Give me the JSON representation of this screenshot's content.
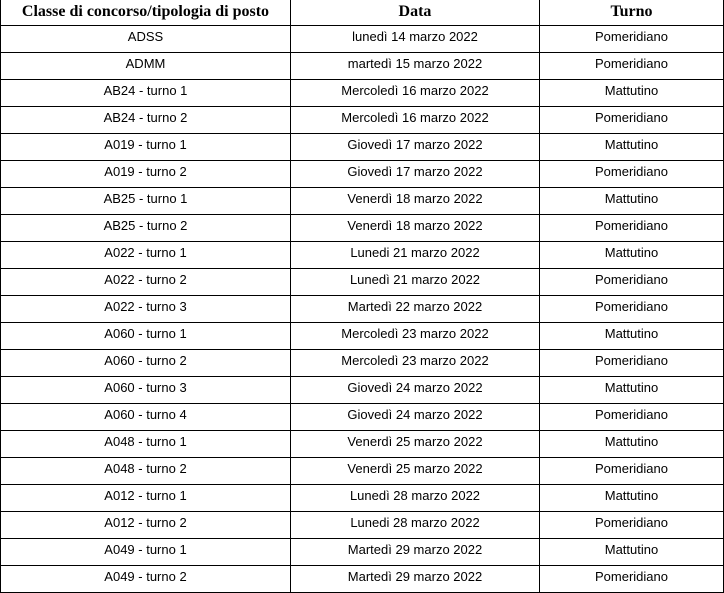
{
  "table": {
    "headers": [
      "Classe di concorso/tipologia di posto",
      "Data",
      "Turno"
    ],
    "rows": [
      [
        "ADSS",
        "lunedì 14 marzo 2022",
        "Pomeridiano"
      ],
      [
        "ADMM",
        "martedì 15 marzo 2022",
        "Pomeridiano"
      ],
      [
        "AB24 - turno 1",
        "Mercoledì 16 marzo 2022",
        "Mattutino"
      ],
      [
        "AB24 - turno 2",
        "Mercoledì 16 marzo 2022",
        "Pomeridiano"
      ],
      [
        "A019 - turno 1",
        "Giovedì 17 marzo 2022",
        "Mattutino"
      ],
      [
        "A019 - turno 2",
        "Giovedì 17 marzo 2022",
        "Pomeridiano"
      ],
      [
        "AB25 - turno 1",
        "Venerdì 18 marzo 2022",
        "Mattutino"
      ],
      [
        "AB25 - turno 2",
        "Venerdì 18 marzo 2022",
        "Pomeridiano"
      ],
      [
        "A022 - turno 1",
        "Lunedi 21 marzo 2022",
        "Mattutino"
      ],
      [
        "A022 - turno 2",
        "Lunedì 21 marzo 2022",
        "Pomeridiano"
      ],
      [
        "A022 - turno 3",
        "Martedì 22 marzo 2022",
        "Pomeridiano"
      ],
      [
        "A060 - turno 1",
        "Mercoledì 23 marzo 2022",
        "Mattutino"
      ],
      [
        "A060 - turno 2",
        "Mercoledì 23 marzo 2022",
        "Pomeridiano"
      ],
      [
        "A060 - turno 3",
        "Giovedì 24 marzo 2022",
        "Mattutino"
      ],
      [
        "A060 - turno 4",
        "Giovedì 24 marzo 2022",
        "Pomeridiano"
      ],
      [
        "A048 - turno 1",
        "Venerdì 25 marzo 2022",
        "Mattutino"
      ],
      [
        "A048 - turno 2",
        "Venerdì 25 marzo 2022",
        "Pomeridiano"
      ],
      [
        "A012 - turno 1",
        "Lunedì 28 marzo 2022",
        "Mattutino"
      ],
      [
        "A012 - turno 2",
        "Lunedi 28 marzo 2022",
        "Pomeridiano"
      ],
      [
        "A049 - turno 1",
        "Martedì 29 marzo 2022",
        "Mattutino"
      ],
      [
        "A049 - turno 2",
        "Martedì 29 marzo 2022",
        "Pomeridiano"
      ]
    ]
  }
}
